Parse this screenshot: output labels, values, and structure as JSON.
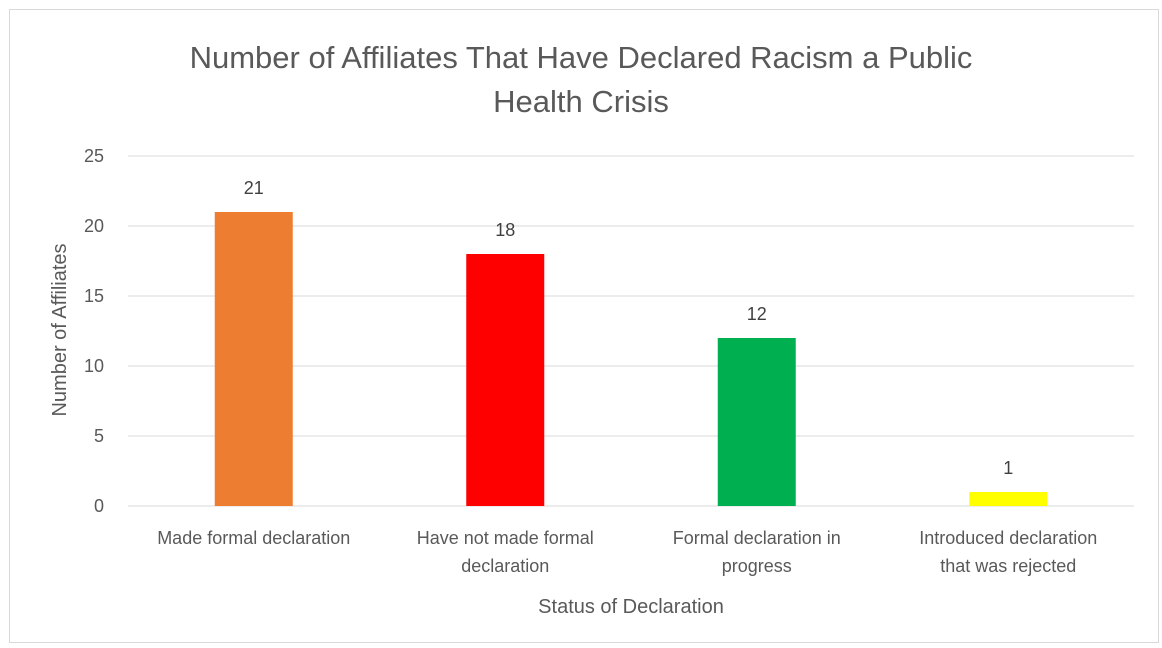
{
  "chart_data": {
    "type": "bar",
    "title_lines": [
      "Number of Affiliates That Have Declared Racism a Public",
      "Health Crisis"
    ],
    "xlabel": "Status of Declaration",
    "ylabel": "Number of Affiliates",
    "categories": [
      [
        "Made formal declaration"
      ],
      [
        "Have not made formal",
        "declaration"
      ],
      [
        "Formal declaration in",
        "progress"
      ],
      [
        "Introduced declaration",
        "that was rejected"
      ]
    ],
    "values": [
      21,
      18,
      12,
      1
    ],
    "colors": [
      "#ED7D31",
      "#FF0000",
      "#00B050",
      "#FFFF00"
    ],
    "ylim": [
      0,
      25
    ],
    "yticks": [
      0,
      5,
      10,
      15,
      20,
      25
    ],
    "grid": true,
    "data_labels": true
  }
}
